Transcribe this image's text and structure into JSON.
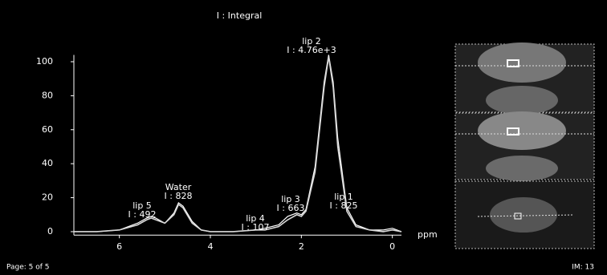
{
  "chart_data": {
    "type": "line",
    "title": "I : Integral",
    "x_label": "ppm",
    "x": [
      7,
      6.5,
      6,
      5.6,
      5.4,
      5.3,
      5.2,
      5.0,
      4.8,
      4.7,
      4.6,
      4.4,
      4.2,
      4.0,
      3.5,
      3.0,
      2.8,
      2.5,
      2.3,
      2.1,
      2.0,
      1.9,
      1.7,
      1.5,
      1.4,
      1.3,
      1.2,
      1.0,
      0.8,
      0.5,
      0.2,
      0,
      -0.2
    ],
    "series": [
      {
        "color": "#ffffff",
        "values": [
          0,
          0,
          1,
          5,
          8,
          9,
          8,
          5,
          11,
          17,
          15,
          6,
          1,
          0,
          0,
          1,
          2,
          4,
          9,
          11,
          10,
          13,
          38,
          88,
          104,
          88,
          55,
          14,
          4,
          1,
          1,
          2,
          0
        ]
      },
      {
        "color": "#d8d8d8",
        "values": [
          0,
          0,
          1,
          4,
          7,
          8,
          7,
          5,
          10,
          16,
          14,
          5,
          1,
          0,
          0,
          1,
          1,
          3,
          7,
          10,
          9,
          12,
          35,
          85,
          103,
          85,
          50,
          12,
          3,
          1,
          0,
          1,
          0
        ]
      }
    ],
    "xlim": [
      7,
      -0.2
    ],
    "xticks": [
      6,
      4,
      2,
      0
    ],
    "ylim": [
      -2,
      104
    ],
    "yticks": [
      0,
      20,
      40,
      60,
      80,
      100
    ],
    "annotations": [
      {
        "name": "lip 2",
        "integral": "I : 4.76e+3"
      },
      {
        "name": "Water",
        "integral": "I : 828"
      },
      {
        "name": "lip 5",
        "integral": "I : 492"
      },
      {
        "name": "lip 3",
        "integral": "I : 663"
      },
      {
        "name": "lip 4",
        "integral": "I : 107"
      },
      {
        "name": "lip 1",
        "integral": "I : 825"
      }
    ]
  },
  "footer": {
    "page": "Page: 5 of 5",
    "image": "IM: 13"
  }
}
